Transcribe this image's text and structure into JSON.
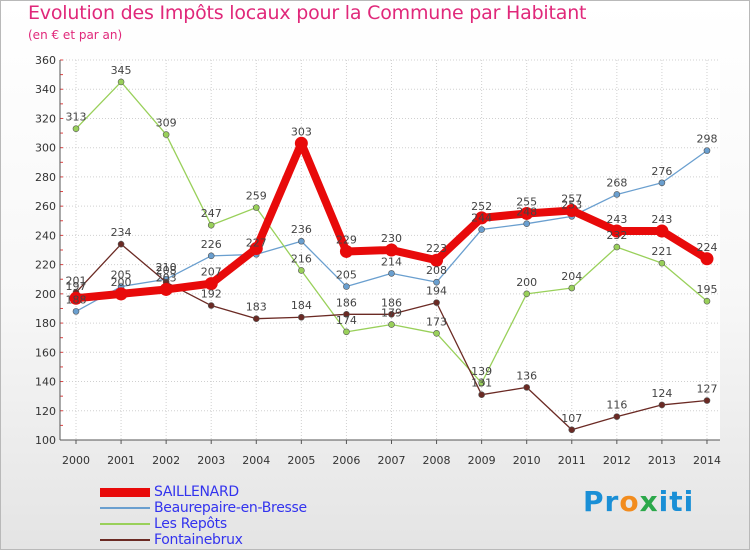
{
  "chart_data": {
    "type": "line",
    "title": "Evolution des Impôts locaux pour la Commune par Habitant",
    "subtitle": "(en € et par an)",
    "xlabel": "",
    "ylabel": "",
    "ylim": [
      100,
      360
    ],
    "yticks": [
      100,
      120,
      140,
      160,
      180,
      200,
      220,
      240,
      260,
      280,
      300,
      320,
      340,
      360
    ],
    "categories": [
      "2000",
      "2001",
      "2002",
      "2003",
      "2004",
      "2005",
      "2006",
      "2007",
      "2008",
      "2009",
      "2010",
      "2011",
      "2012",
      "2013",
      "2014"
    ],
    "grid": true,
    "legend_position": "bottom-left",
    "series": [
      {
        "name": "SAILLENARD",
        "color": "#e80a0a",
        "values": [
          197,
          200,
          203,
          207,
          231,
          303,
          229,
          230,
          223,
          252,
          255,
          257,
          243,
          243,
          224
        ],
        "labels": [
          "197",
          "200",
          "203",
          "207",
          "",
          "303",
          "229",
          "230",
          "223",
          "252",
          "255",
          "257",
          "243",
          "243",
          "224"
        ]
      },
      {
        "name": "Beaurepaire-en-Bresse",
        "color": "#6a9fcf",
        "values": [
          188,
          205,
          210,
          226,
          227,
          236,
          205,
          214,
          208,
          244,
          248,
          253,
          268,
          276,
          298
        ],
        "labels": [
          "188",
          "205",
          "210",
          "226",
          "227",
          "236",
          "205",
          "214",
          "208",
          "244",
          "248",
          "253",
          "268",
          "276",
          "298"
        ]
      },
      {
        "name": "Les Repôts",
        "color": "#99d05a",
        "values": [
          313,
          345,
          309,
          247,
          259,
          216,
          174,
          179,
          173,
          139,
          200,
          204,
          232,
          221,
          195
        ],
        "labels": [
          "313",
          "345",
          "309",
          "247",
          "259",
          "216",
          "174",
          "179",
          "173",
          "139",
          "200",
          "204",
          "232",
          "221",
          "195"
        ]
      },
      {
        "name": "Fontainebrux",
        "color": "#6b2a24",
        "values": [
          201,
          234,
          208,
          192,
          183,
          184,
          186,
          186,
          194,
          131,
          136,
          107,
          116,
          124,
          127
        ],
        "labels": [
          "201",
          "234",
          "208",
          "192",
          "183",
          "184",
          "186",
          "186",
          "194",
          "131",
          "136",
          "107",
          "116",
          "124",
          "127"
        ]
      }
    ]
  },
  "logo": {
    "text_parts": [
      "Pr",
      "o",
      "x",
      "iti"
    ],
    "accent_colors": [
      "#1a8fd6",
      "#f28c1e",
      "#2ba84a"
    ]
  }
}
